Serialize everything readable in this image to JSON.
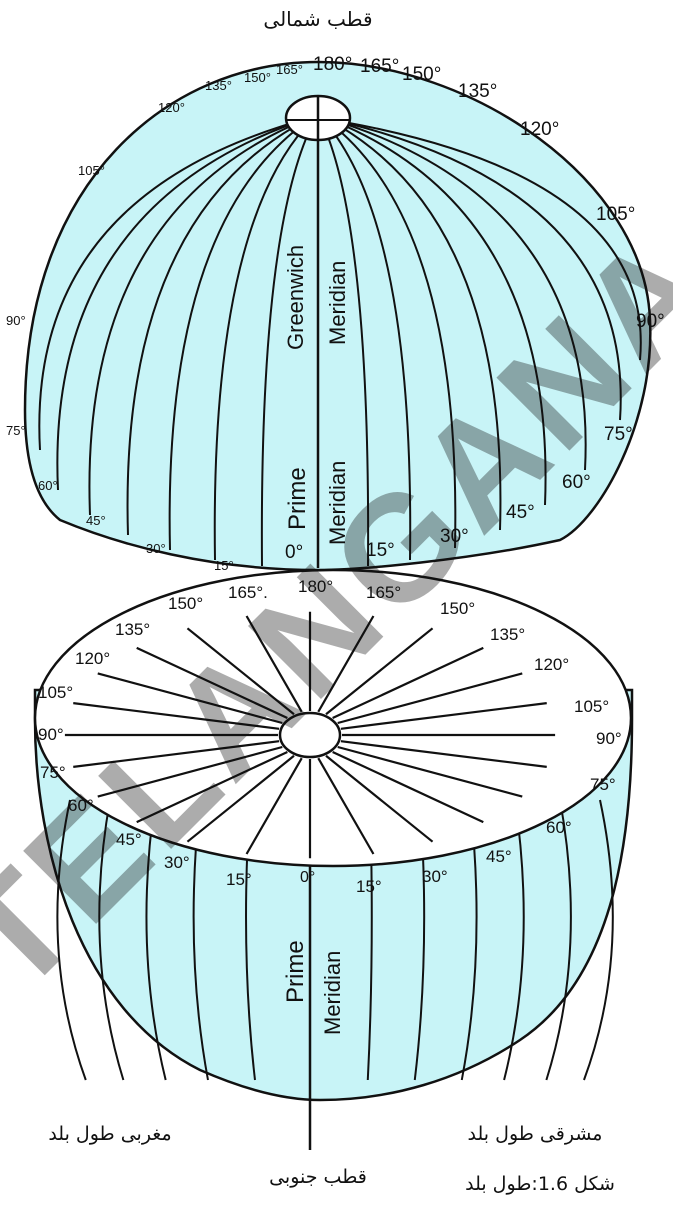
{
  "top_caption": "قطب شمالی",
  "bottom_caption": "قطب جنوبی",
  "west_label": "مغربی طول بلد",
  "east_label": "مشرقی طول بلد",
  "figure_caption": "شکل 1.6:طول بلد",
  "upper_hemisphere": {
    "meridian_text_1": "Greenwich",
    "meridian_text_2": "Meridian",
    "prime_text_1": "Prime",
    "prime_text_2": "Meridian",
    "left_labels": [
      "135°",
      "150°",
      "165°",
      "120°",
      "105°",
      "90°",
      "75°",
      "60°",
      "45°",
      "30°",
      "15°"
    ],
    "right_labels": [
      "180°",
      "165°",
      "150°",
      "135°",
      "120°",
      "105°",
      "90°",
      "75°",
      "60°",
      "45°",
      "30°",
      "15°"
    ],
    "zero_label": "0°"
  },
  "lower_disc": {
    "left_labels": [
      "165°.",
      "150°",
      "135°",
      "120°",
      "105°",
      "90°",
      "75°",
      "60°",
      "45°",
      "30°",
      "15°"
    ],
    "right_labels": [
      "180°",
      "165°",
      "150°",
      "135°",
      "120°",
      "105°",
      "90°",
      "75°",
      "60°",
      "45°",
      "30°",
      "15°"
    ],
    "zero_label": "0°",
    "prime_text_1": "Prime",
    "prime_text_2": "Meridian"
  },
  "watermark": "TELANGANA",
  "colors": {
    "fill": "#c8f4f7",
    "stroke": "#111111",
    "watermark": "#bdbdbd"
  }
}
